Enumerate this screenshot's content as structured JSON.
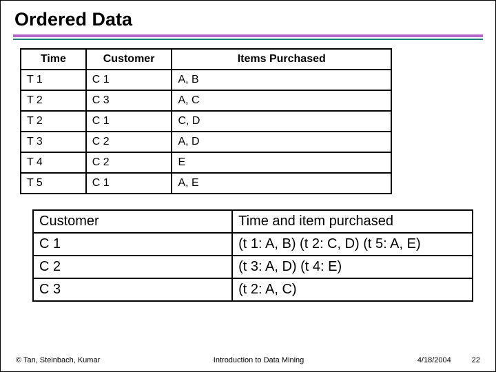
{
  "title": "Ordered Data",
  "table1": {
    "headers": [
      "Time",
      "Customer",
      "Items Purchased"
    ],
    "rows": [
      [
        "T 1",
        "C 1",
        "A, B"
      ],
      [
        "T 2",
        "C 3",
        "A, C"
      ],
      [
        "T 2",
        "C 1",
        "C, D"
      ],
      [
        "T 3",
        "C 2",
        "A, D"
      ],
      [
        "T 4",
        "C 2",
        "E"
      ],
      [
        "T 5",
        "C 1",
        "A, E"
      ]
    ]
  },
  "table2": {
    "headers": [
      "Customer",
      "Time and item purchased"
    ],
    "rows": [
      [
        "C 1",
        "(t 1: A, B) (t 2: C, D) (t 5: A, E)"
      ],
      [
        "C 2",
        "(t 3: A, D) (t 4: E)"
      ],
      [
        "C 3",
        "(t 2: A, C)"
      ]
    ]
  },
  "footer": {
    "copyright": "© Tan, Steinbach, Kumar",
    "center": "Introduction to Data Mining",
    "date": "4/18/2004",
    "page": "22"
  },
  "colors": {
    "divider_purple": "#b565c9",
    "divider_teal": "#1e8080",
    "border": "#000000",
    "background": "#ffffff"
  }
}
